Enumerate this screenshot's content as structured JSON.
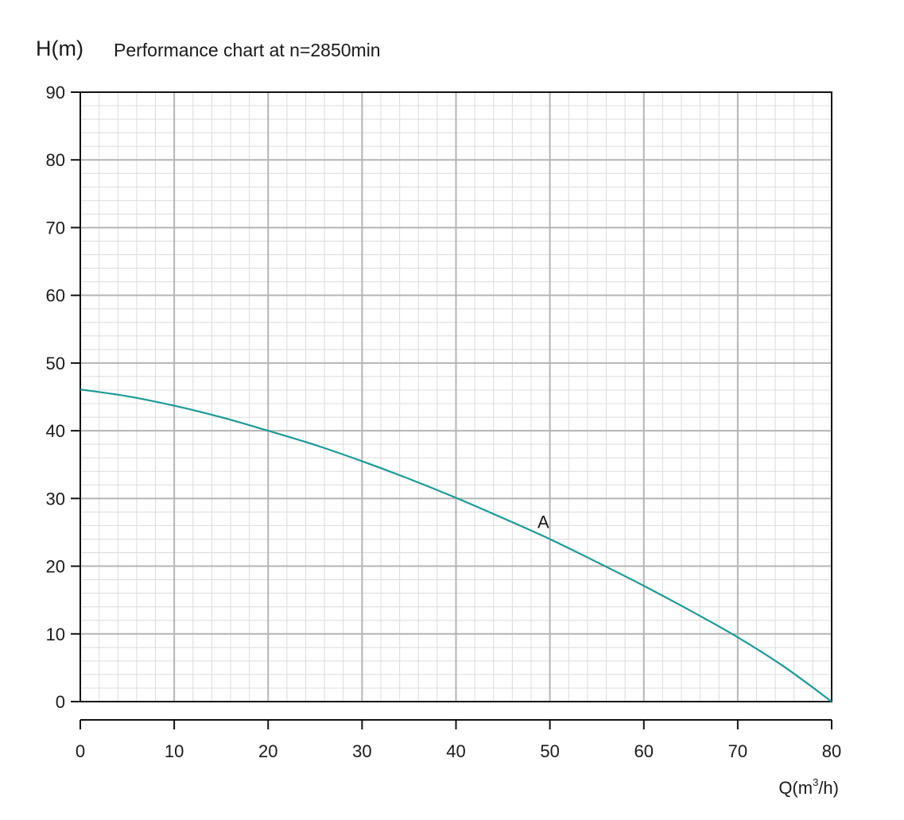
{
  "chart_data": {
    "type": "line",
    "title": "Performance chart at n=2850min",
    "ylabel": "H(m)",
    "xlabel": "Q(m³/h)",
    "xlabel_parts": {
      "prefix": "Q(m",
      "sup": "3",
      "suffix": "/h)"
    },
    "xlim": [
      0,
      80
    ],
    "ylim": [
      0,
      90
    ],
    "x_ticks": [
      0,
      10,
      20,
      30,
      40,
      50,
      60,
      70,
      80
    ],
    "y_ticks": [
      0,
      10,
      20,
      30,
      40,
      50,
      60,
      70,
      80,
      90
    ],
    "grid": true,
    "curve_color": "#1a9a9a",
    "series": [
      {
        "name": "A",
        "x": [
          0,
          5,
          10,
          15,
          20,
          25,
          30,
          35,
          40,
          45,
          50,
          55,
          60,
          65,
          70,
          75,
          80
        ],
        "y": [
          46.1,
          45.1,
          43.7,
          42.0,
          40.0,
          37.9,
          35.5,
          32.9,
          30.1,
          27.1,
          24.0,
          20.6,
          17.1,
          13.4,
          9.5,
          5.1,
          0
        ]
      }
    ],
    "annotations": [
      {
        "text": "A",
        "x": 49.3,
        "y": 26.6
      }
    ]
  }
}
